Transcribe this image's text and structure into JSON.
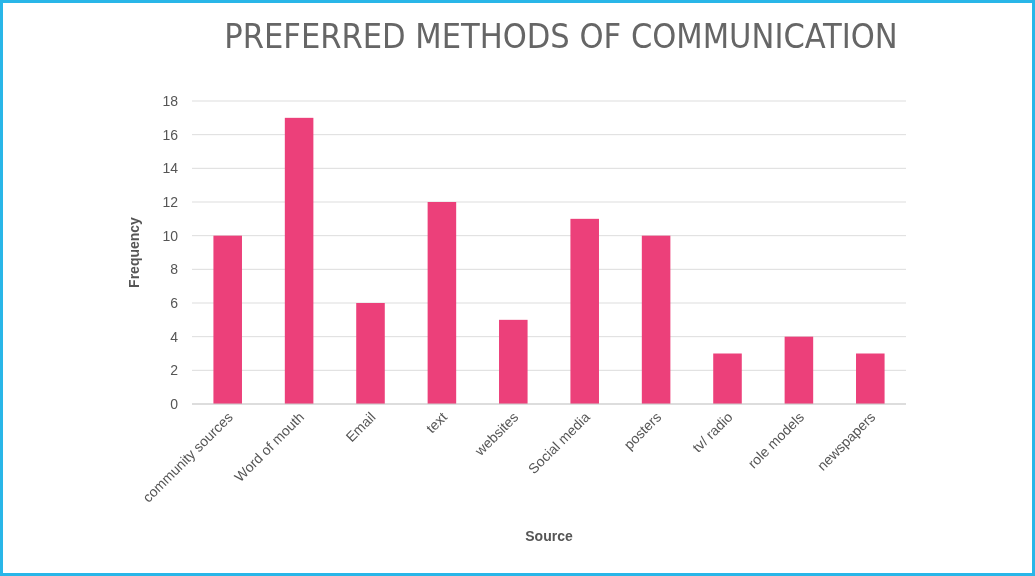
{
  "chart_data": {
    "type": "bar",
    "title": "PREFERRED METHODS OF COMMUNICATION",
    "xlabel": "Source",
    "ylabel": "Frequency",
    "categories": [
      "community sources",
      "Word of mouth",
      "Email",
      "text",
      "websites",
      "Social media",
      "posters",
      "tv/ radio",
      "role models",
      "newspapers"
    ],
    "values": [
      10,
      17,
      6,
      12,
      5,
      11,
      10,
      3,
      4,
      3
    ],
    "color": "#ec407a",
    "ylim": [
      0,
      18
    ],
    "yticks": [
      0,
      2,
      4,
      6,
      8,
      10,
      12,
      14,
      16,
      18
    ],
    "grid": "y"
  }
}
